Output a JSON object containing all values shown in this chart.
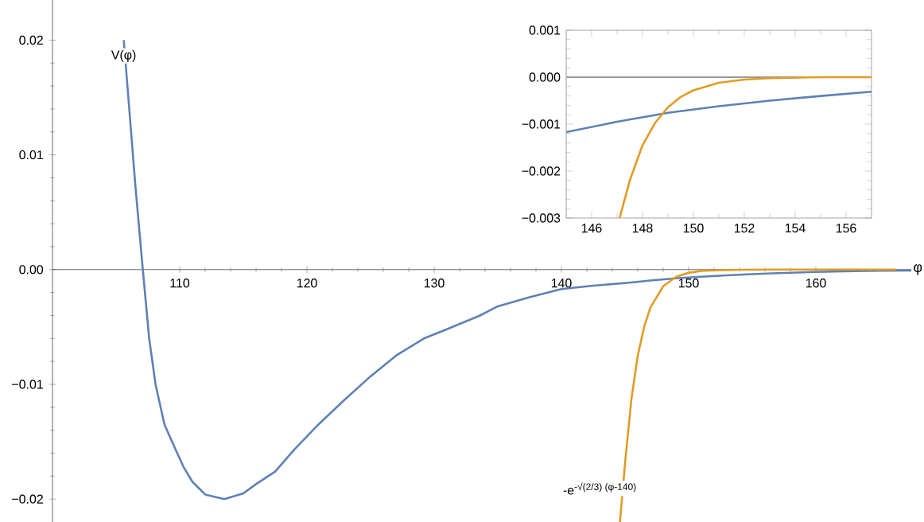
{
  "chart_data": [
    {
      "type": "line",
      "xlabel": "φ",
      "xlim": [
        100,
        167.5
      ],
      "ylim": [
        -0.022,
        0.0235
      ],
      "xticks": [
        110,
        120,
        130,
        140,
        150,
        160
      ],
      "yticks": [
        {
          "value": -0.02,
          "label": "−0.02"
        },
        {
          "value": -0.01,
          "label": "−0.01"
        },
        {
          "value": 0,
          "label": "0.00"
        },
        {
          "value": 0.01,
          "label": "0.01"
        },
        {
          "value": 0.02,
          "label": "0.02"
        }
      ],
      "series": [
        {
          "name": "V(φ)",
          "color": "#5e81b5",
          "x": [
            105.6,
            106,
            106.5,
            107.1,
            107.6,
            108.1,
            108.8,
            109.6,
            110.3,
            111,
            112,
            113.5,
            115,
            116,
            117.5,
            119,
            120.9,
            123,
            125,
            127,
            129.2,
            131,
            133.6,
            135,
            137.5,
            140,
            142.5,
            145,
            147,
            149,
            151,
            153,
            155,
            157,
            160,
            163,
            165,
            167.5
          ],
          "values": [
            0.02,
            0.0145,
            0.0075,
            0,
            -0.006,
            -0.01,
            -0.0135,
            -0.0155,
            -0.0172,
            -0.0185,
            -0.0196,
            -0.02,
            -0.0195,
            -0.0187,
            -0.0176,
            -0.0157,
            -0.0135,
            -0.0113,
            -0.0093,
            -0.0075,
            -0.006,
            -0.0052,
            -0.004,
            -0.0032,
            -0.0024,
            -0.0017,
            -0.0014,
            -0.00117,
            -0.00095,
            -0.00076,
            -0.00062,
            -0.0005,
            -0.0004,
            -0.00031,
            -0.0002,
            -0.00014,
            -0.0001,
            -8e-05
          ]
        },
        {
          "name": "-e$^{-√(2/3) (φ-140)}$",
          "color": "#e19c24",
          "x": [
            144.6,
            145,
            145.5,
            146,
            146.5,
            147,
            148,
            149,
            150,
            151,
            152,
            154,
            157,
            160,
            166.3
          ],
          "values": [
            -0.022,
            -0.0169,
            -0.0113,
            -0.0075,
            -0.005,
            -0.0033,
            -0.00145,
            -0.00064,
            -0.00028,
            -0.00012,
            -6e-05,
            -1e-05,
            0,
            0,
            0
          ]
        }
      ]
    },
    {
      "type": "line",
      "xlim": [
        145,
        157
      ],
      "ylim": [
        -0.003,
        0.001
      ],
      "xticks": [
        146,
        148,
        150,
        152,
        154,
        156
      ],
      "yticks": [
        {
          "value": -0.003,
          "label": "−0.003"
        },
        {
          "value": -0.002,
          "label": "−0.002"
        },
        {
          "value": -0.001,
          "label": "−0.001"
        },
        {
          "value": 0,
          "label": "0.000"
        },
        {
          "value": 0.001,
          "label": "0.001"
        }
      ],
      "ref_lines": [
        {
          "axis": "y",
          "value": 0,
          "color": "#999999"
        }
      ],
      "series": [
        {
          "color": "#5e81b5",
          "x": [
            145,
            147,
            149,
            151,
            153,
            155,
            157
          ],
          "values": [
            -0.00117,
            -0.00095,
            -0.00076,
            -0.00062,
            -0.0005,
            -0.0004,
            -0.00031
          ]
        },
        {
          "color": "#e19c24",
          "x": [
            147.1,
            147.5,
            148,
            148.5,
            149,
            149.5,
            150,
            151,
            152,
            153,
            155,
            157
          ],
          "values": [
            -0.003,
            -0.0022,
            -0.00145,
            -0.00097,
            -0.00064,
            -0.00042,
            -0.00028,
            -0.00012,
            -5e-05,
            -2e-05,
            0,
            0
          ]
        }
      ]
    }
  ]
}
